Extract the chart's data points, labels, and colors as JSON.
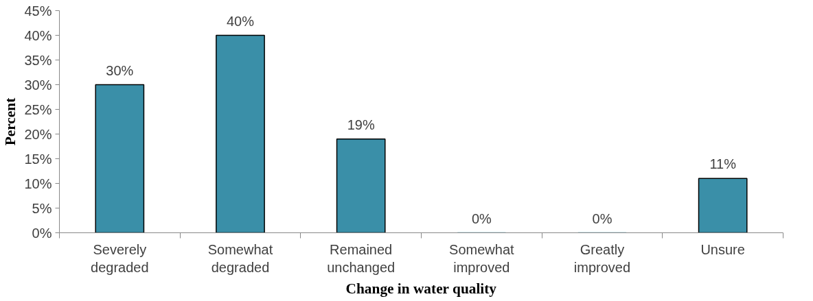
{
  "chart_data": {
    "type": "bar",
    "xlabel": "Change in water quality",
    "ylabel": "Percent",
    "categories": [
      "Severely degraded",
      "Somewhat degraded",
      "Remained unchanged",
      "Somewhat improved",
      "Greatly improved",
      "Unsure"
    ],
    "values": [
      30,
      40,
      19,
      0,
      0,
      11
    ],
    "value_labels": [
      "30%",
      "40%",
      "19%",
      "0%",
      "0%",
      "11%"
    ],
    "color": "#3a8fa8",
    "ylim": [
      0,
      45
    ],
    "yticks": [
      {
        "value": 0,
        "label": "0%"
      },
      {
        "value": 5,
        "label": "5%"
      },
      {
        "value": 10,
        "label": "10%"
      },
      {
        "value": 15,
        "label": "15%"
      },
      {
        "value": 20,
        "label": "20%"
      },
      {
        "value": 25,
        "label": "25%"
      },
      {
        "value": 30,
        "label": "30%"
      },
      {
        "value": 35,
        "label": "35%"
      },
      {
        "value": 40,
        "label": "40%"
      },
      {
        "value": 45,
        "label": "45%"
      }
    ],
    "grid": false
  }
}
